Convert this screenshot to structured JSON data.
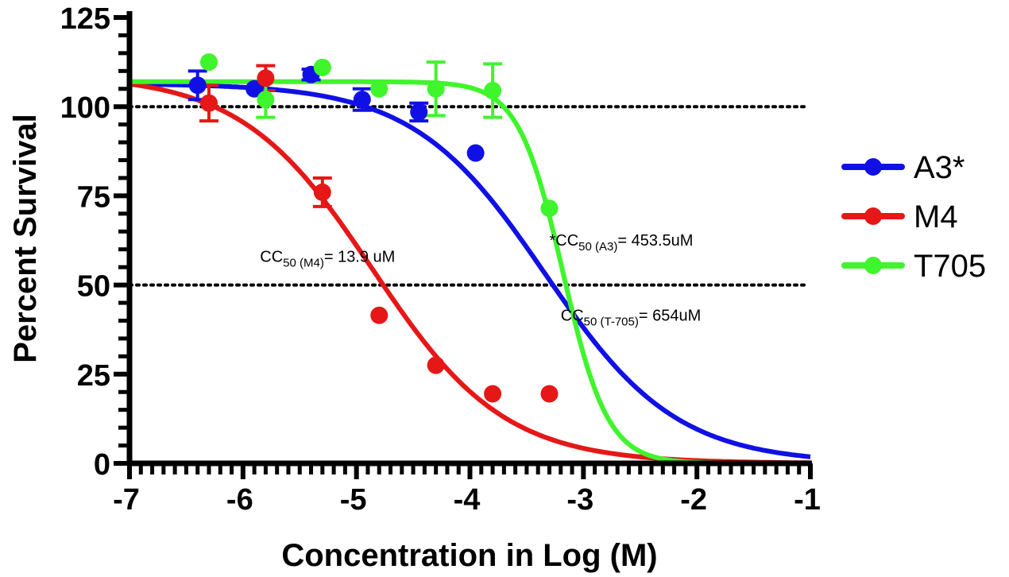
{
  "chart_data": {
    "type": "line",
    "xlabel": "Concentration in Log (M)",
    "ylabel": "Percent Survival",
    "xlim": [
      -7,
      -1
    ],
    "ylim": [
      0,
      125
    ],
    "x_ticks": [
      -7,
      -6,
      -5,
      -4,
      -3,
      -2,
      -1
    ],
    "y_ticks": [
      0,
      25,
      50,
      75,
      100,
      125
    ],
    "reference_lines": [
      100,
      50
    ],
    "grid": false,
    "legend_position": "right",
    "series": [
      {
        "name": "A3*",
        "color": "#1010e6",
        "points": [
          {
            "x": -6.4,
            "y": 106,
            "err": 4
          },
          {
            "x": -5.9,
            "y": 105,
            "err": 0
          },
          {
            "x": -5.4,
            "y": 109,
            "err": 1.5
          },
          {
            "x": -4.95,
            "y": 102,
            "err": 3
          },
          {
            "x": -4.45,
            "y": 98.5,
            "err": 2.5
          },
          {
            "x": -3.95,
            "y": 87,
            "err": 0
          },
          {
            "x": -3.35,
            "y": null,
            "err": 0
          }
        ],
        "fit": {
          "top": 106.5,
          "bottom": 0,
          "log_cc50": -3.34,
          "hill": 0.75
        }
      },
      {
        "name": "M4",
        "color": "#e61717",
        "points": [
          {
            "x": -6.3,
            "y": 101,
            "err": 5
          },
          {
            "x": -5.8,
            "y": 108,
            "err": 3.5
          },
          {
            "x": -5.3,
            "y": 76,
            "err": 4
          },
          {
            "x": -4.8,
            "y": 41.5,
            "err": 0
          },
          {
            "x": -4.3,
            "y": 27.5,
            "err": 0
          },
          {
            "x": -3.8,
            "y": 19.5,
            "err": 0
          },
          {
            "x": -3.3,
            "y": 19.5,
            "err": 0
          }
        ],
        "fit": {
          "top": 109,
          "bottom": 0,
          "log_cc50": -4.86,
          "hill": 0.75
        }
      },
      {
        "name": "T705",
        "color": "#3ff52c",
        "points": [
          {
            "x": -6.3,
            "y": 112.5,
            "err": 0
          },
          {
            "x": -5.8,
            "y": 102,
            "err": 5
          },
          {
            "x": -5.3,
            "y": 111,
            "err": 0
          },
          {
            "x": -4.8,
            "y": 105,
            "err": 0
          },
          {
            "x": -4.3,
            "y": 105,
            "err": 7.5
          },
          {
            "x": -3.8,
            "y": 104.5,
            "err": 7.5
          },
          {
            "x": -3.3,
            "y": 71.5,
            "err": 0
          }
        ],
        "fit": {
          "top": 107,
          "bottom": 0,
          "log_cc50": -3.18,
          "hill": 2.2
        }
      }
    ],
    "annotations": [
      {
        "id": "m4",
        "pre": "CC",
        "sub": "50 (M4)",
        "post": "= 13.9 uM",
        "x": -5.85,
        "y": 56.5
      },
      {
        "id": "a3",
        "pre": "*CC",
        "sub": "50 (A3)",
        "post": "= 453.5uM",
        "x": -3.3,
        "y": 61
      },
      {
        "id": "t705",
        "pre": "CC",
        "sub": "50 (T-705)",
        "post": "= 654uM",
        "x": -3.2,
        "y": 40
      }
    ]
  }
}
